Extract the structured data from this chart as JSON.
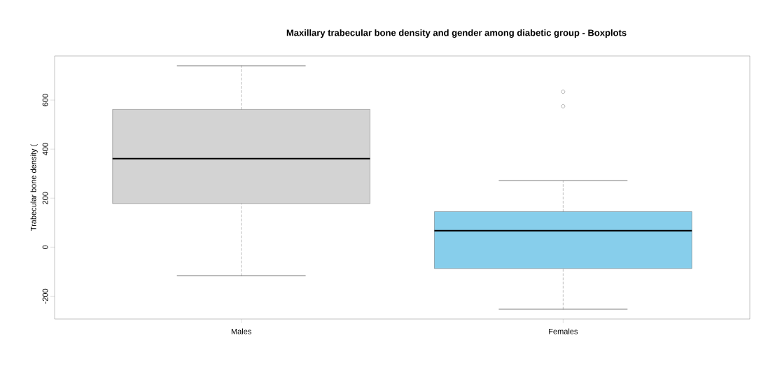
{
  "chart_data": {
    "type": "box",
    "title": "Maxillary trabecular bone density and gender among diabetic group - Boxplots",
    "ylabel": "Trabecular bone density (",
    "categories": [
      "Males",
      "Females"
    ],
    "colors": [
      "#d3d3d3",
      "#87ceeb"
    ],
    "boxes": [
      {
        "low": -116,
        "q1": 178,
        "median": 361,
        "q3": 562,
        "high": 740
      },
      {
        "low": -253,
        "q1": -87,
        "median": 67,
        "q3": 145,
        "high": 271,
        "outliers": [
          575,
          634
        ]
      }
    ],
    "ylim": [
      -293,
      780
    ],
    "yticks": [
      -200,
      0,
      200,
      400,
      600
    ],
    "grid": false
  }
}
